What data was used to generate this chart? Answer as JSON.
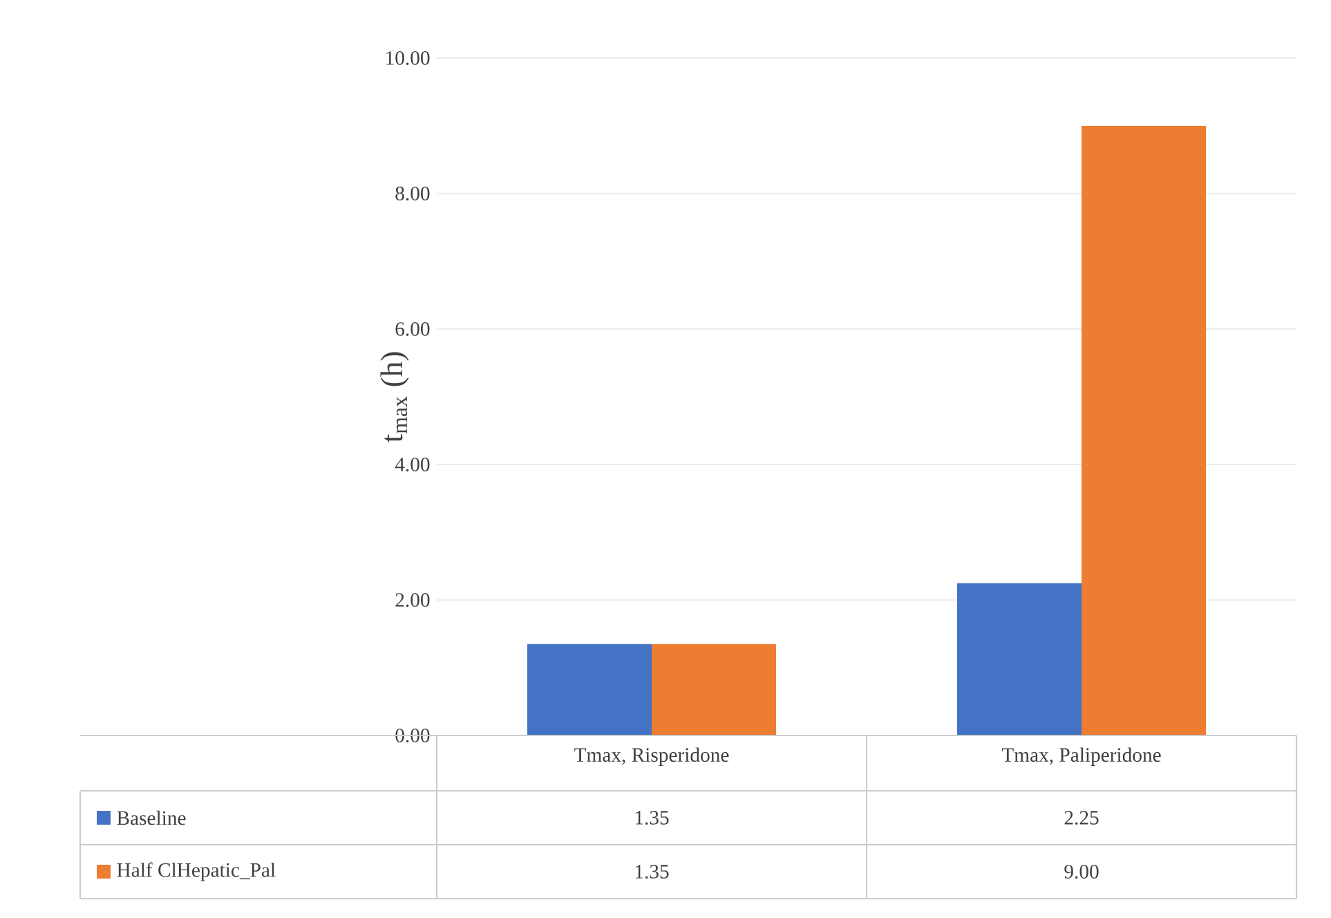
{
  "chart_data": {
    "type": "bar",
    "ylabel": "t$_{max}$ (h)",
    "categories": [
      "Tmax, Risperidone",
      "Tmax, Paliperidone"
    ],
    "series": [
      {
        "name": "Baseline",
        "color": "#4472c4",
        "values": [
          1.35,
          2.25
        ],
        "value_labels": [
          "1.35",
          "2.25"
        ]
      },
      {
        "name": "Half ClHepatic_Pal",
        "color": "#ed7d31",
        "values": [
          1.35,
          9.0
        ],
        "value_labels": [
          "1.35",
          "9.00"
        ]
      }
    ],
    "ylim": [
      0,
      10
    ],
    "yticks": [
      {
        "value": 0,
        "label": "0.00"
      },
      {
        "value": 2,
        "label": "2.00"
      },
      {
        "value": 4,
        "label": "4.00"
      },
      {
        "value": 6,
        "label": "6.00"
      },
      {
        "value": 8,
        "label": "8.00"
      },
      {
        "value": 10,
        "label": "10.00"
      }
    ],
    "grid": "y",
    "legend": "bottom"
  }
}
